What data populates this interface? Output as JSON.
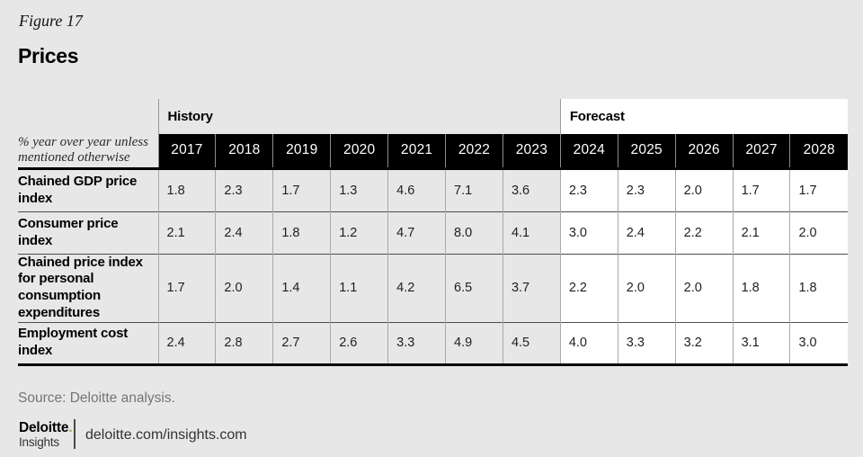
{
  "figure_label": "Figure 17",
  "title": "Prices",
  "table": {
    "corner_note": "% year over year unless mentioned otherwise",
    "groups": [
      {
        "label": "History",
        "span": 7
      },
      {
        "label": "Forecast",
        "span": 5
      }
    ],
    "years": [
      "2017",
      "2018",
      "2019",
      "2020",
      "2021",
      "2022",
      "2023",
      "2024",
      "2025",
      "2026",
      "2027",
      "2028"
    ],
    "history_count": 7,
    "rows": [
      {
        "label": "Chained GDP price index",
        "values": [
          "1.8",
          "2.3",
          "1.7",
          "1.3",
          "4.6",
          "7.1",
          "3.6",
          "2.3",
          "2.3",
          "2.0",
          "1.7",
          "1.7"
        ]
      },
      {
        "label": "Consumer price index",
        "values": [
          "2.1",
          "2.4",
          "1.8",
          "1.2",
          "4.7",
          "8.0",
          "4.1",
          "3.0",
          "2.4",
          "2.2",
          "2.1",
          "2.0"
        ]
      },
      {
        "label": "Chained price index for personal consumption expenditures",
        "values": [
          "1.7",
          "2.0",
          "1.4",
          "1.1",
          "4.2",
          "6.5",
          "3.7",
          "2.2",
          "2.0",
          "2.0",
          "1.8",
          "1.8"
        ]
      },
      {
        "label": "Employment cost index",
        "values": [
          "2.4",
          "2.8",
          "2.7",
          "2.6",
          "3.3",
          "4.9",
          "4.5",
          "4.0",
          "3.3",
          "3.2",
          "3.1",
          "3.0"
        ]
      }
    ]
  },
  "source": "Source: Deloitte analysis.",
  "footer": {
    "brand_primary": "Deloitte",
    "brand_dot": ".",
    "brand_secondary": "Insights",
    "url": "deloitte.com/insights.com"
  },
  "colors": {
    "page_background": "#e7e7e7",
    "forecast_background": "#ffffff",
    "year_header_background": "#000000",
    "year_header_text": "#ffffff",
    "brand_green": "#86bc25",
    "source_text": "#757575"
  },
  "chart_data": {
    "type": "table",
    "title": "Prices",
    "subtitle": "Figure 17",
    "unit_note": "% year over year unless mentioned otherwise",
    "categories": [
      2017,
      2018,
      2019,
      2020,
      2021,
      2022,
      2023,
      2024,
      2025,
      2026,
      2027,
      2028
    ],
    "column_groups": [
      {
        "name": "History",
        "years": [
          2017,
          2018,
          2019,
          2020,
          2021,
          2022,
          2023
        ]
      },
      {
        "name": "Forecast",
        "years": [
          2024,
          2025,
          2026,
          2027,
          2028
        ]
      }
    ],
    "series": [
      {
        "name": "Chained GDP price index",
        "values": [
          1.8,
          2.3,
          1.7,
          1.3,
          4.6,
          7.1,
          3.6,
          2.3,
          2.3,
          2.0,
          1.7,
          1.7
        ]
      },
      {
        "name": "Consumer price index",
        "values": [
          2.1,
          2.4,
          1.8,
          1.2,
          4.7,
          8.0,
          4.1,
          3.0,
          2.4,
          2.2,
          2.1,
          2.0
        ]
      },
      {
        "name": "Chained price index for personal consumption expenditures",
        "values": [
          1.7,
          2.0,
          1.4,
          1.1,
          4.2,
          6.5,
          3.7,
          2.2,
          2.0,
          2.0,
          1.8,
          1.8
        ]
      },
      {
        "name": "Employment cost index",
        "values": [
          2.4,
          2.8,
          2.7,
          2.6,
          3.3,
          4.9,
          4.5,
          4.0,
          3.3,
          3.2,
          3.1,
          3.0
        ]
      }
    ],
    "source": "Source: Deloitte analysis."
  }
}
